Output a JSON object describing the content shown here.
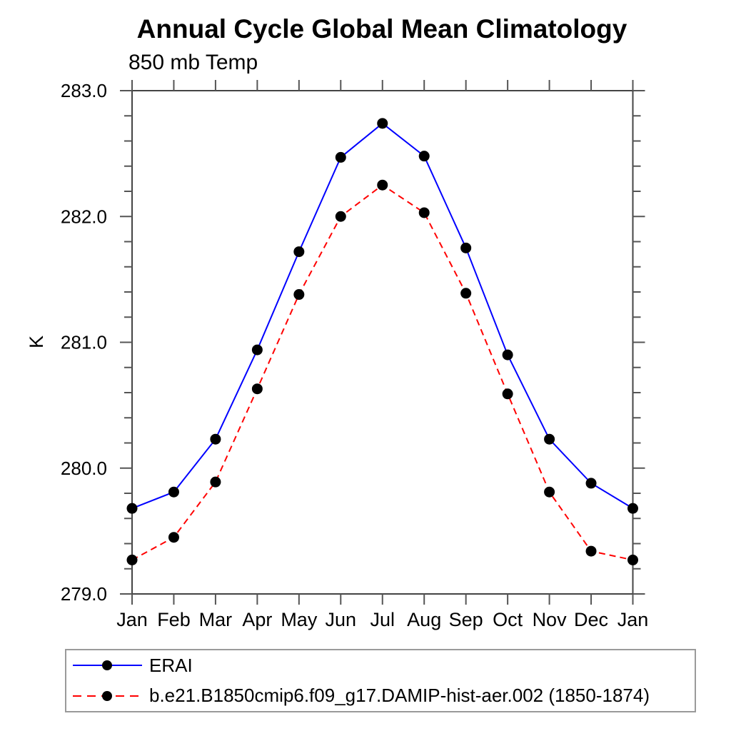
{
  "chart_data": {
    "type": "line",
    "title": "Annual Cycle Global Mean Climatology",
    "subtitle": "850 mb Temp",
    "ylabel": "K",
    "xlabel": "",
    "x_tick_labels": [
      "Jan",
      "Feb",
      "Mar",
      "Apr",
      "May",
      "Jun",
      "Jul",
      "Aug",
      "Sep",
      "Oct",
      "Nov",
      "Dec",
      "Jan"
    ],
    "y_ticks": [
      279.0,
      280.0,
      281.0,
      282.0,
      283.0
    ],
    "y_tick_labels": [
      "279.0",
      "280.0",
      "281.0",
      "282.0",
      "283.0"
    ],
    "ylim": [
      279.0,
      283.0
    ],
    "y_minor_step": 0.2,
    "grid": false,
    "legend_position": "bottom-left-box",
    "series": [
      {
        "name": "ERAI",
        "color": "#0000ff",
        "style": "solid",
        "marker": "filled-circle",
        "marker_color": "#000000",
        "values": [
          279.68,
          279.81,
          280.23,
          280.94,
          281.72,
          282.47,
          282.74,
          282.48,
          281.75,
          280.9,
          280.23,
          279.88,
          279.68
        ]
      },
      {
        "name": "b.e21.B1850cmip6.f09_g17.DAMIP-hist-aer.002 (1850-1874)",
        "color": "#ff0000",
        "style": "dashed",
        "marker": "filled-circle",
        "marker_color": "#000000",
        "values": [
          279.27,
          279.45,
          279.89,
          280.63,
          281.38,
          282.0,
          282.25,
          282.03,
          281.39,
          280.59,
          279.81,
          279.34,
          279.27
        ]
      }
    ],
    "colors": {
      "axis": "#444444",
      "tick": "#555555",
      "text": "#000000",
      "legend_border": "#9a9a9a",
      "background": "#ffffff"
    }
  }
}
